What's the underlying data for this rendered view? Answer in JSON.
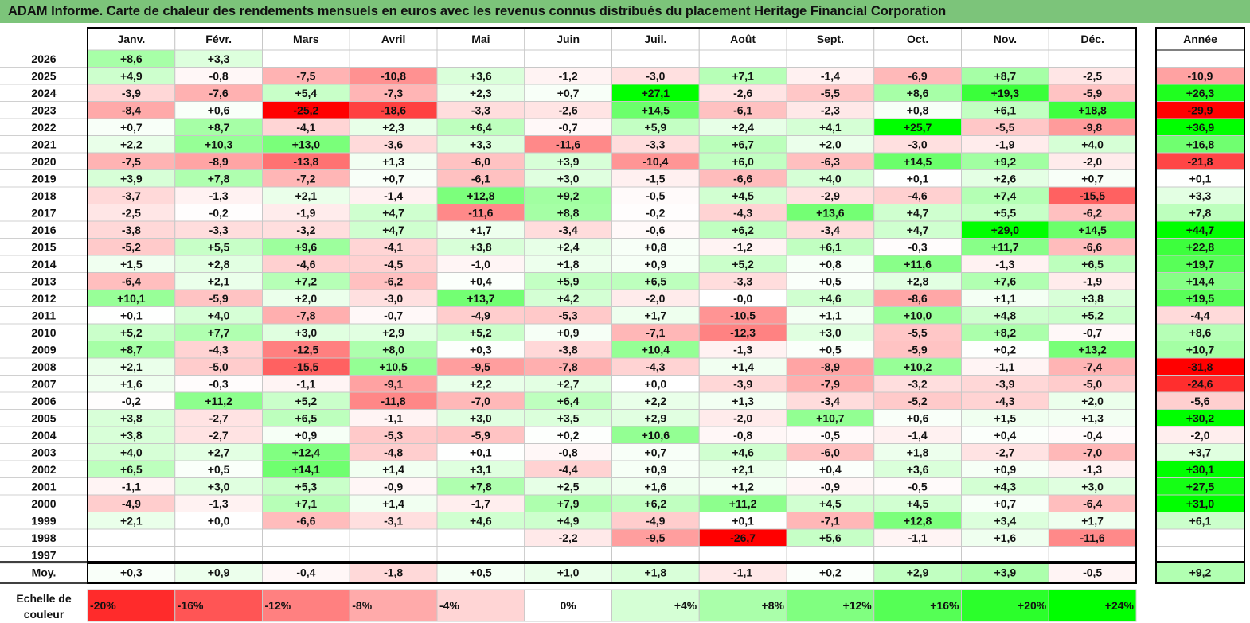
{
  "title": "ADAM Informe. Carte de chaleur des rendements mensuels en euros avec les revenus connus distribués du placement Heritage Financial Corporation",
  "colors": {
    "title_bg": "#7cc47a",
    "positive_max": "#00ff00",
    "negative_max": "#ff0000",
    "neutral": "#ffffff"
  },
  "chart_data": {
    "type": "heatmap",
    "title": "ADAM Informe. Carte de chaleur des rendements mensuels en euros avec les revenus connus distribués du placement Heritage Financial Corporation",
    "months": [
      "Janv.",
      "Févr.",
      "Mars",
      "Avril",
      "Mai",
      "Juin",
      "Juil.",
      "Août",
      "Sept.",
      "Oct.",
      "Nov.",
      "Déc."
    ],
    "year_header": "Année",
    "rows": [
      {
        "year": "2026",
        "values": [
          "+8,6",
          "+3,3",
          "",
          "",
          "",
          "",
          "",
          "",
          "",
          "",
          "",
          ""
        ],
        "annual": ""
      },
      {
        "year": "2025",
        "values": [
          "+4,9",
          "-0,8",
          "-7,5",
          "-10,8",
          "+3,6",
          "-1,2",
          "-3,0",
          "+7,1",
          "-1,4",
          "-6,9",
          "+8,7",
          "-2,5"
        ],
        "annual": "-10,9"
      },
      {
        "year": "2024",
        "values": [
          "-3,9",
          "-7,6",
          "+5,4",
          "-7,3",
          "+2,3",
          "+0,7",
          "+27,1",
          "-2,6",
          "-5,5",
          "+8,6",
          "+19,3",
          "-5,9"
        ],
        "annual": "+26,3"
      },
      {
        "year": "2023",
        "values": [
          "-8,4",
          "+0,6",
          "-25,2",
          "-18,6",
          "-3,3",
          "-2,6",
          "+14,5",
          "-6,1",
          "-2,3",
          "+0,8",
          "+6,1",
          "+18,8"
        ],
        "annual": "-29,9"
      },
      {
        "year": "2022",
        "values": [
          "+0,7",
          "+8,7",
          "-4,1",
          "+2,3",
          "+6,4",
          "-0,7",
          "+5,9",
          "+2,4",
          "+4,1",
          "+25,7",
          "-5,5",
          "-9,8"
        ],
        "annual": "+36,9"
      },
      {
        "year": "2021",
        "values": [
          "+2,2",
          "+10,3",
          "+13,0",
          "-3,6",
          "+3,3",
          "-11,6",
          "-3,3",
          "+6,7",
          "+2,0",
          "-3,0",
          "-1,9",
          "+4,0"
        ],
        "annual": "+16,8"
      },
      {
        "year": "2020",
        "values": [
          "-7,5",
          "-8,9",
          "-13,8",
          "+1,3",
          "-6,0",
          "+3,9",
          "-10,4",
          "+6,0",
          "-6,3",
          "+14,5",
          "+9,2",
          "-2,0"
        ],
        "annual": "-21,8"
      },
      {
        "year": "2019",
        "values": [
          "+3,9",
          "+7,8",
          "-7,2",
          "+0,7",
          "-6,1",
          "+3,0",
          "-1,5",
          "-6,6",
          "+4,0",
          "+0,1",
          "+2,6",
          "+0,7"
        ],
        "annual": "+0,1"
      },
      {
        "year": "2018",
        "values": [
          "-3,7",
          "-1,3",
          "+2,1",
          "-1,4",
          "+12,8",
          "+9,2",
          "-0,5",
          "+4,5",
          "-2,9",
          "-4,6",
          "+7,4",
          "-15,5"
        ],
        "annual": "+3,3"
      },
      {
        "year": "2017",
        "values": [
          "-2,5",
          "-0,2",
          "-1,9",
          "+4,7",
          "-11,6",
          "+8,8",
          "-0,2",
          "-4,3",
          "+13,6",
          "+4,7",
          "+5,5",
          "-6,2"
        ],
        "annual": "+7,8"
      },
      {
        "year": "2016",
        "values": [
          "-3,8",
          "-3,3",
          "-3,2",
          "+4,7",
          "+1,7",
          "-3,4",
          "-0,6",
          "+6,2",
          "-3,4",
          "+4,7",
          "+29,0",
          "+14,5"
        ],
        "annual": "+44,7"
      },
      {
        "year": "2015",
        "values": [
          "-5,2",
          "+5,5",
          "+9,6",
          "-4,1",
          "+3,8",
          "+2,4",
          "+0,8",
          "-1,2",
          "+6,1",
          "-0,3",
          "+11,7",
          "-6,6"
        ],
        "annual": "+22,8"
      },
      {
        "year": "2014",
        "values": [
          "+1,5",
          "+2,8",
          "-4,6",
          "-4,5",
          "-1,0",
          "+1,8",
          "+0,9",
          "+5,2",
          "+0,8",
          "+11,6",
          "-1,3",
          "+6,5"
        ],
        "annual": "+19,7"
      },
      {
        "year": "2013",
        "values": [
          "-6,4",
          "+2,1",
          "+7,2",
          "-6,2",
          "+0,4",
          "+5,9",
          "+6,5",
          "-3,3",
          "+0,5",
          "+2,8",
          "+7,6",
          "-1,9"
        ],
        "annual": "+14,4"
      },
      {
        "year": "2012",
        "values": [
          "+10,1",
          "-5,9",
          "+2,0",
          "-3,0",
          "+13,7",
          "+4,2",
          "-2,0",
          "-0,0",
          "+4,6",
          "-8,6",
          "+1,1",
          "+3,8"
        ],
        "annual": "+19,5"
      },
      {
        "year": "2011",
        "values": [
          "+0,1",
          "+4,0",
          "-7,8",
          "-0,7",
          "-4,9",
          "-5,3",
          "+1,7",
          "-10,5",
          "+1,1",
          "+10,0",
          "+4,8",
          "+5,2"
        ],
        "annual": "-4,4"
      },
      {
        "year": "2010",
        "values": [
          "+5,2",
          "+7,7",
          "+3,0",
          "+2,9",
          "+5,2",
          "+0,9",
          "-7,1",
          "-12,3",
          "+3,0",
          "-5,5",
          "+8,2",
          "-0,7"
        ],
        "annual": "+8,6"
      },
      {
        "year": "2009",
        "values": [
          "+8,7",
          "-4,3",
          "-12,5",
          "+8,0",
          "+0,3",
          "-3,8",
          "+10,4",
          "-1,3",
          "+0,5",
          "-5,9",
          "+0,2",
          "+13,2"
        ],
        "annual": "+10,7"
      },
      {
        "year": "2008",
        "values": [
          "+2,1",
          "-5,0",
          "-15,5",
          "+10,5",
          "-9,5",
          "-7,8",
          "-4,3",
          "+1,4",
          "-8,9",
          "+10,2",
          "-1,1",
          "-7,4"
        ],
        "annual": "-31,8"
      },
      {
        "year": "2007",
        "values": [
          "+1,6",
          "-0,3",
          "-1,1",
          "-9,1",
          "+2,2",
          "+2,7",
          "+0,0",
          "-3,9",
          "-7,9",
          "-3,2",
          "-3,9",
          "-5,0"
        ],
        "annual": "-24,6"
      },
      {
        "year": "2006",
        "values": [
          "-0,2",
          "+11,2",
          "+5,2",
          "-11,8",
          "-7,0",
          "+6,4",
          "+2,2",
          "+1,3",
          "-3,4",
          "-5,2",
          "-4,3",
          "+2,0"
        ],
        "annual": "-5,6"
      },
      {
        "year": "2005",
        "values": [
          "+3,8",
          "-2,7",
          "+6,5",
          "-1,1",
          "+3,0",
          "+3,5",
          "+2,9",
          "-2,0",
          "+10,7",
          "+0,6",
          "+1,5",
          "+1,3"
        ],
        "annual": "+30,2"
      },
      {
        "year": "2004",
        "values": [
          "+3,8",
          "-2,7",
          "+0,9",
          "-5,3",
          "-5,9",
          "+0,2",
          "+10,6",
          "-0,8",
          "-0,5",
          "-1,4",
          "+0,4",
          "-0,4"
        ],
        "annual": "-2,0"
      },
      {
        "year": "2003",
        "values": [
          "+4,0",
          "+2,7",
          "+12,4",
          "-4,8",
          "+0,1",
          "-0,8",
          "+0,7",
          "+4,6",
          "-6,0",
          "+1,8",
          "-2,7",
          "-7,0"
        ],
        "annual": "+3,7"
      },
      {
        "year": "2002",
        "values": [
          "+6,5",
          "+0,5",
          "+14,1",
          "+1,4",
          "+3,1",
          "-4,4",
          "+0,9",
          "+2,1",
          "+0,4",
          "+3,6",
          "+0,9",
          "-1,3"
        ],
        "annual": "+30,1"
      },
      {
        "year": "2001",
        "values": [
          "-1,1",
          "+3,0",
          "+5,3",
          "-0,9",
          "+7,8",
          "+2,5",
          "+1,6",
          "+1,2",
          "-0,9",
          "-0,5",
          "+4,3",
          "+3,0"
        ],
        "annual": "+27,5"
      },
      {
        "year": "2000",
        "values": [
          "-4,9",
          "-1,3",
          "+7,1",
          "+1,4",
          "-1,7",
          "+7,9",
          "+6,2",
          "+11,2",
          "+4,5",
          "+4,5",
          "+0,7",
          "-6,4"
        ],
        "annual": "+31,0"
      },
      {
        "year": "1999",
        "values": [
          "+2,1",
          "+0,0",
          "-6,6",
          "-3,1",
          "+4,6",
          "+4,9",
          "-4,9",
          "+0,1",
          "-7,1",
          "+12,8",
          "+3,4",
          "+1,7"
        ],
        "annual": "+6,1"
      },
      {
        "year": "1998",
        "values": [
          "",
          "",
          "",
          "",
          "",
          "-2,2",
          "-9,5",
          "-26,7",
          "+5,6",
          "-1,1",
          "+1,6",
          "-11,6"
        ],
        "annual": ""
      },
      {
        "year": "1997",
        "values": [
          "",
          "",
          "",
          "",
          "",
          "",
          "",
          "",
          "",
          "",
          "",
          ""
        ],
        "annual": ""
      }
    ],
    "average": {
      "label": "Moy.",
      "values": [
        "+0,3",
        "+0,9",
        "-0,4",
        "-1,8",
        "+0,5",
        "+1,0",
        "+1,8",
        "-1,1",
        "+0,2",
        "+2,9",
        "+3,9",
        "-0,5"
      ],
      "annual": "+9,2"
    },
    "scale": {
      "label_line1": "Echelle de",
      "label_line2": "couleur",
      "steps": [
        "-20%",
        "-16%",
        "-12%",
        "-8%",
        "-4%",
        "0%",
        "+4%",
        "+8%",
        "+12%",
        "+16%",
        "+20%",
        "+24%"
      ],
      "step_values": [
        -20,
        -16,
        -12,
        -8,
        -4,
        0,
        4,
        8,
        12,
        16,
        20,
        24
      ]
    },
    "color_range": {
      "monthly_saturation": 25,
      "annual_saturation": 30
    }
  }
}
